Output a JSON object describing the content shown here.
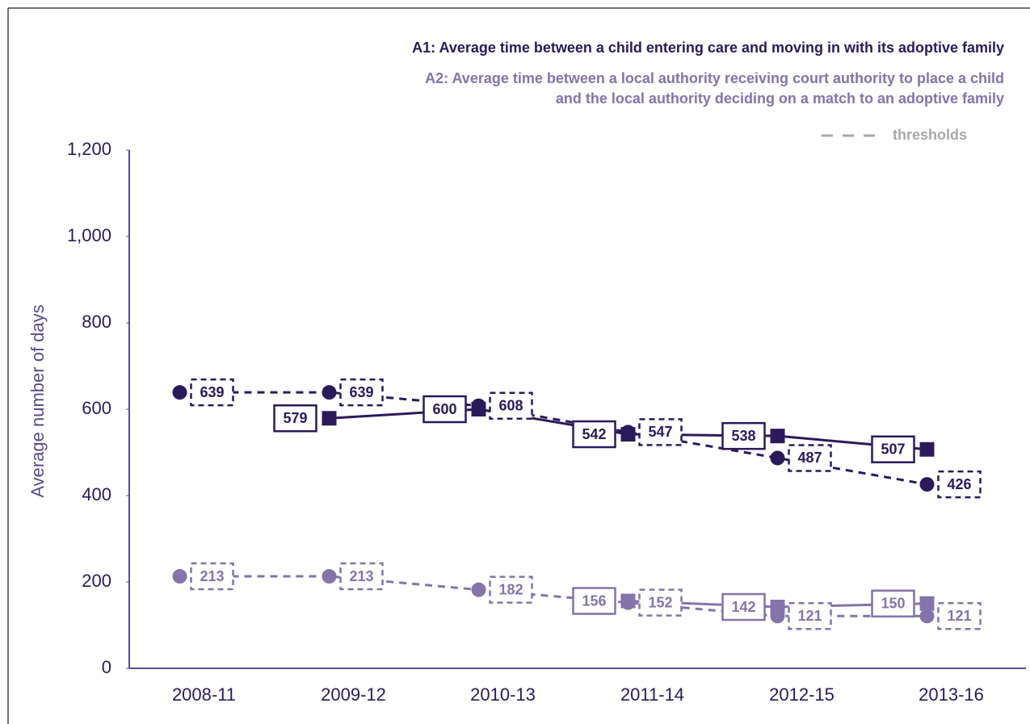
{
  "chart_data": {
    "type": "line",
    "legend_lines": [
      [
        "A1: Average time between a child entering care and moving in with its adoptive family"
      ],
      [
        "A2: Average time between a local authority receiving court authority to place a child",
        "and the local authority deciding on a match to an adoptive family"
      ]
    ],
    "legend_colors": [
      "#2b1a5b",
      "#8474aa"
    ],
    "threshold_label": "thresholds",
    "threshold_color": "#a9a9a9",
    "y_label": "Average number of days",
    "categories": [
      "2008-11",
      "2009-12",
      "2010-13",
      "2011-14",
      "2012-15",
      "2013-16"
    ],
    "series": [
      {
        "color": "#2b1a5b",
        "dashed": false,
        "marker": "square",
        "values": [
          null,
          579,
          600,
          542,
          538,
          507
        ]
      },
      {
        "color": "#2b1a5b",
        "dashed": true,
        "marker": "circle",
        "values": [
          639,
          639,
          608,
          547,
          487,
          426
        ]
      },
      {
        "color": "#8474aa",
        "dashed": false,
        "marker": "square",
        "values": [
          null,
          null,
          null,
          156,
          142,
          150
        ]
      },
      {
        "color": "#8474aa",
        "dashed": true,
        "marker": "circle",
        "values": [
          213,
          213,
          182,
          152,
          121,
          121
        ]
      }
    ],
    "ylim": [
      0,
      1200
    ],
    "yticks": [
      0,
      200,
      400,
      600,
      800,
      {
        "value": 1000,
        "label": "1,000"
      },
      {
        "value": 1200,
        "label": "1,200"
      }
    ],
    "axis_color": "#5b4a8a"
  }
}
